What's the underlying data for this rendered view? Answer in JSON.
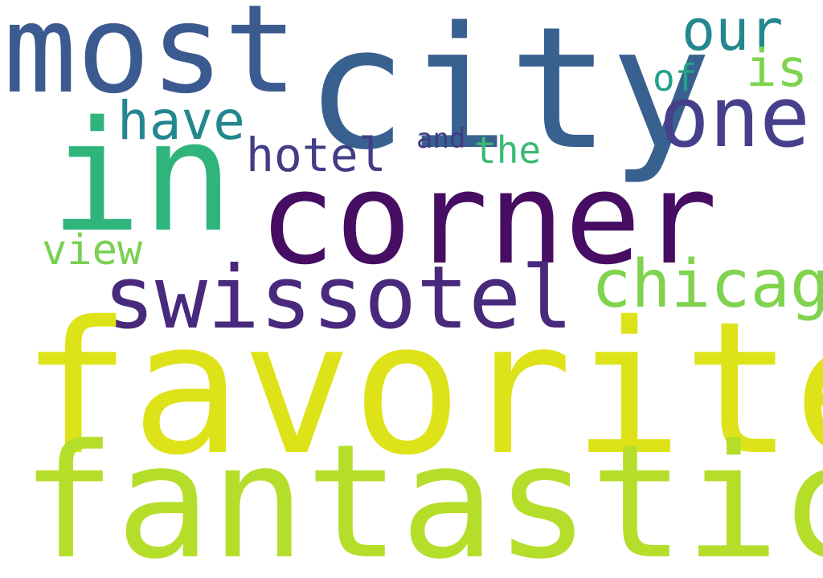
{
  "words": [
    {
      "text": "most",
      "color": "#3b5a8f"
    },
    {
      "text": "city",
      "color": "#38618f"
    },
    {
      "text": "our",
      "color": "#24878e"
    },
    {
      "text": "is",
      "color": "#7ed34f"
    },
    {
      "text": "of",
      "color": "#25a18a"
    },
    {
      "text": "one",
      "color": "#463f8a"
    },
    {
      "text": "have",
      "color": "#24868e"
    },
    {
      "text": "in",
      "color": "#2fb57c"
    },
    {
      "text": "hotel",
      "color": "#423d84"
    },
    {
      "text": "and",
      "color": "#3e3b83"
    },
    {
      "text": "the",
      "color": "#3bba75"
    },
    {
      "text": "corner",
      "color": "#460d63"
    },
    {
      "text": "view",
      "color": "#79d152"
    },
    {
      "text": "swissotel",
      "color": "#48297c"
    },
    {
      "text": "chicago",
      "color": "#7fd34e"
    },
    {
      "text": "favorite",
      "color": "#dde318"
    },
    {
      "text": "fantastic",
      "color": "#b5de2b"
    }
  ]
}
